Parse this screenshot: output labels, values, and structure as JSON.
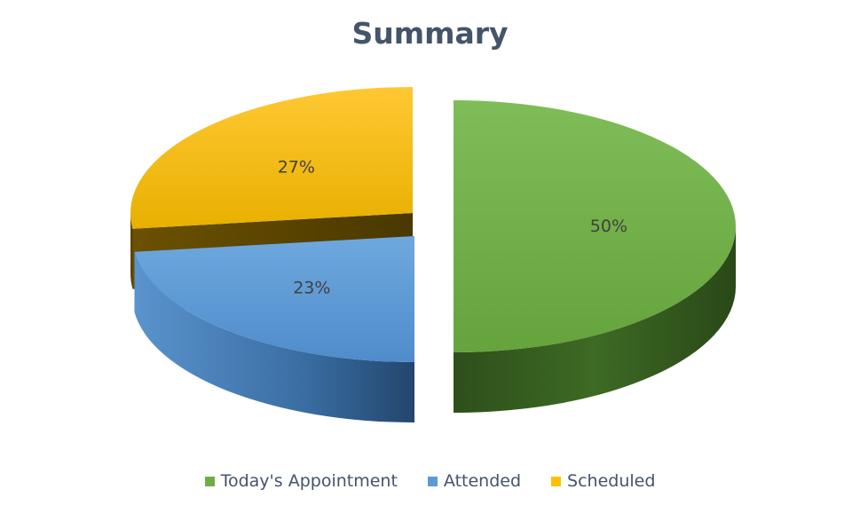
{
  "chart_data": {
    "type": "pie",
    "title": "Summary",
    "is_3d": true,
    "exploded": true,
    "legend_position": "bottom",
    "slices": [
      {
        "name": "Today's Appointment",
        "value": 50,
        "label": "50%",
        "color": "#70ad47"
      },
      {
        "name": "Attended",
        "value": 23,
        "label": "23%",
        "color": "#5b9bd5"
      },
      {
        "name": "Scheduled",
        "value": 27,
        "label": "27%",
        "color": "#ffc000"
      }
    ]
  }
}
